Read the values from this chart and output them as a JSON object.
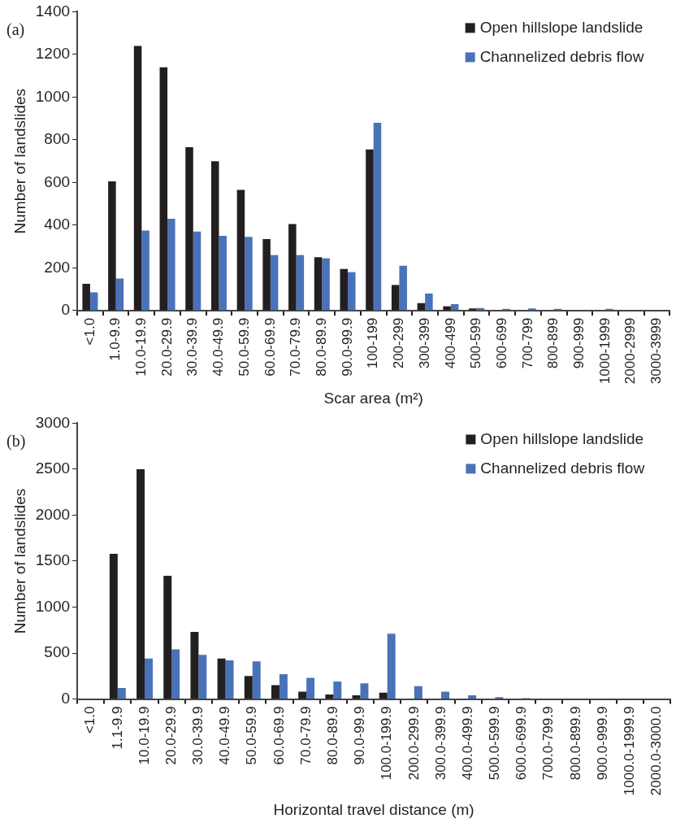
{
  "chart_data": [
    {
      "type": "bar",
      "annotations": [
        "(a)"
      ],
      "xlabel": "Scar area (m²)",
      "ylabel": "Number of landslides",
      "categories": [
        "<1.0",
        "1.0-9.9",
        "10.0-19.9",
        "20.0-29.9",
        "30.0-39.9",
        "40.0-49.9",
        "50.0-59.9",
        "60.0-69.9",
        "70.0-79.9",
        "80.0-89.9",
        "90.0-99.9",
        "100-199",
        "200-299",
        "300-399",
        "400-499",
        "500-599",
        "600-699",
        "700-799",
        "800-899",
        "900-999",
        "1000-1999",
        "2000-2999",
        "3000-3999"
      ],
      "series": [
        {
          "name": "Open hillslope landslide",
          "color": "#231f20",
          "values": [
            125,
            605,
            1240,
            1140,
            765,
            700,
            565,
            335,
            405,
            250,
            195,
            755,
            120,
            35,
            20,
            10,
            0,
            0,
            0,
            0,
            0,
            0,
            0
          ]
        },
        {
          "name": "Channelized debris flow",
          "color": "#4a72b8",
          "values": [
            85,
            150,
            375,
            430,
            370,
            350,
            345,
            260,
            260,
            245,
            180,
            880,
            210,
            80,
            30,
            12,
            8,
            10,
            8,
            0,
            8,
            0,
            0
          ]
        }
      ],
      "ylim": [
        0,
        1400
      ],
      "yticks": [
        0,
        200,
        400,
        600,
        800,
        1000,
        1200,
        1400
      ],
      "grid": false,
      "legend": "top right"
    },
    {
      "type": "bar",
      "annotations": [
        "(b)"
      ],
      "xlabel": "Horizontal travel distance (m)",
      "ylabel": "Number of landslides",
      "categories": [
        "<1.0",
        "1.1-9.9",
        "10.0-19.9",
        "20.0-29.9",
        "30.0-39.9",
        "40.0-49.9",
        "50.0-59.9",
        "60.0-69.9",
        "70.0-79.9",
        "80.0-89.9",
        "90.0-99.9",
        "100.0-199.9",
        "200.0-299.9",
        "300.0-399.9",
        "400.0-499.9",
        "500.0-599.9",
        "600.0-699.9",
        "700.0-799.9",
        "800.0-899.9",
        "900.0-999.9",
        "1000.0-1999.9",
        "2000.0-3000.0"
      ],
      "series": [
        {
          "name": "Open hillslope landslide",
          "color": "#231f20",
          "values": [
            0,
            1580,
            2500,
            1340,
            730,
            440,
            250,
            150,
            80,
            50,
            40,
            70,
            0,
            0,
            0,
            0,
            0,
            0,
            0,
            0,
            0,
            0
          ]
        },
        {
          "name": "Channelized debris flow",
          "color": "#4a72b8",
          "values": [
            0,
            120,
            440,
            540,
            480,
            420,
            410,
            270,
            230,
            190,
            170,
            710,
            140,
            80,
            40,
            20,
            10,
            0,
            0,
            0,
            0,
            0
          ]
        }
      ],
      "ylim": [
        0,
        3000
      ],
      "yticks": [
        0,
        500,
        1000,
        1500,
        2000,
        2500,
        3000
      ],
      "grid": false,
      "legend": "top right"
    }
  ]
}
